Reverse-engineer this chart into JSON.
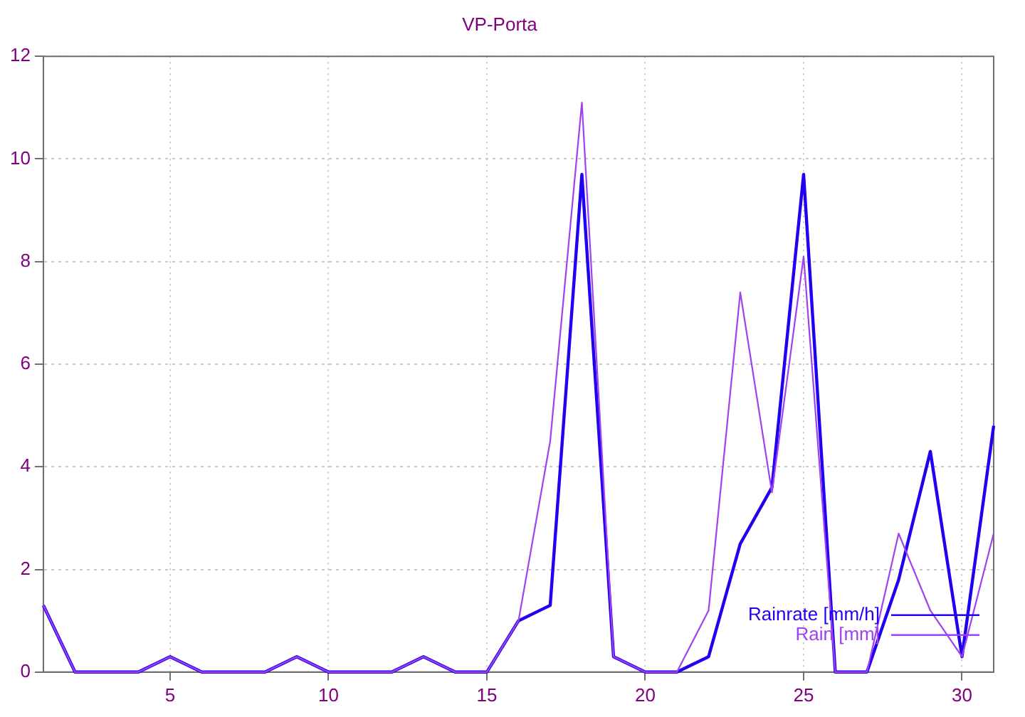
{
  "chart_data": {
    "type": "line",
    "title": "VP-Porta",
    "x": [
      1,
      2,
      3,
      4,
      5,
      6,
      7,
      8,
      9,
      10,
      11,
      12,
      13,
      14,
      15,
      16,
      17,
      18,
      19,
      20,
      21,
      22,
      23,
      24,
      25,
      26,
      27,
      28,
      29,
      30,
      31
    ],
    "series": [
      {
        "name": "Rainrate [mm/h]",
        "color": "#2000f0",
        "values": [
          1.3,
          0,
          0,
          0,
          0.3,
          0,
          0,
          0,
          0.3,
          0,
          0,
          0,
          0.3,
          0,
          0,
          1.0,
          1.3,
          9.7,
          0.3,
          0,
          0,
          0.3,
          2.5,
          3.6,
          9.7,
          0,
          0,
          1.8,
          4.3,
          0.3,
          4.8
        ]
      },
      {
        "name": "Rain [mm]",
        "color": "#a040f0",
        "values": [
          1.3,
          0,
          0,
          0,
          0.3,
          0,
          0,
          0,
          0.3,
          0,
          0,
          0,
          0.3,
          0,
          0,
          1.0,
          4.5,
          11.1,
          0.3,
          0,
          0,
          1.2,
          7.4,
          3.5,
          8.1,
          0,
          0,
          2.7,
          1.2,
          0.3,
          2.7
        ]
      }
    ],
    "xlim": [
      1,
      31
    ],
    "xticks": [
      5,
      10,
      15,
      20,
      25,
      30
    ],
    "ylim": [
      0,
      12
    ],
    "yticks": [
      0,
      2,
      4,
      6,
      8,
      10,
      12
    ],
    "grid": true,
    "legend": "bottom right",
    "marker": "none",
    "line_style": "solid"
  }
}
